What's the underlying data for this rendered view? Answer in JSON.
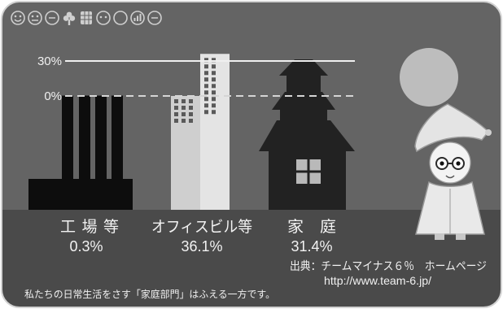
{
  "header_icons": [
    "face-icon",
    "face-icon",
    "minus-circle-icon",
    "tree-icon",
    "building-icon",
    "face-icon",
    "circle-icon",
    "signal-bars-icon",
    "minus-circle-icon"
  ],
  "chart_data": {
    "type": "bar",
    "categories": [
      "工場等",
      "オフィスビル等",
      "家　庭"
    ],
    "values": [
      0.3,
      36.1,
      31.4
    ],
    "value_labels": [
      "0.3%",
      "36.1%",
      "31.4%"
    ],
    "yticks": [
      {
        "value": 0,
        "label": "0%"
      },
      {
        "value": 30,
        "label": "30%"
      }
    ],
    "grid": false
  },
  "source": {
    "credit": "出典：チームマイナス６％　ホームページ",
    "url": "http://www.team-6.jp/"
  },
  "footer_note": "私たちの日常生活をさす「家庭部門」はふえる一方です。",
  "colors": {
    "sky": "#646464",
    "ground": "#4a4a4a",
    "factory": "#0d0d0d",
    "office_low": "#cfcfcf",
    "office_tower": "#e4e4e4",
    "window_dark": "#5a5a5a",
    "house": "#222222",
    "house_window": "#b9b9b9",
    "sun": "#bdbdbd",
    "reference_solid": "#efefef",
    "reference_dashed": "#d5d5d5"
  }
}
